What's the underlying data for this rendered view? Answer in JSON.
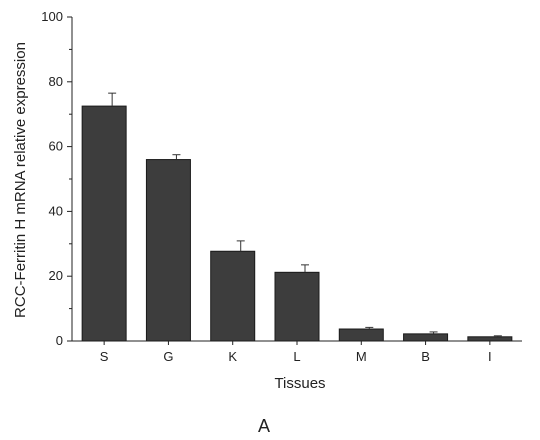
{
  "chart_data": {
    "type": "bar",
    "categories": [
      "S",
      "G",
      "K",
      "L",
      "M",
      "B",
      "I"
    ],
    "values": [
      72.5,
      56.0,
      27.7,
      21.2,
      3.7,
      2.2,
      1.3
    ],
    "error": [
      4.0,
      1.5,
      3.2,
      2.3,
      0.5,
      0.6,
      0.3
    ],
    "xlabel": "Tissues",
    "ylabel": "RCC-Ferritin H mRNA relative expression",
    "ylim": [
      0,
      100
    ],
    "yticks": [
      "0",
      "20",
      "40",
      "60",
      "80",
      "100"
    ],
    "grid": false,
    "bar_color": "#3d3d3d",
    "panel_label": "A"
  }
}
